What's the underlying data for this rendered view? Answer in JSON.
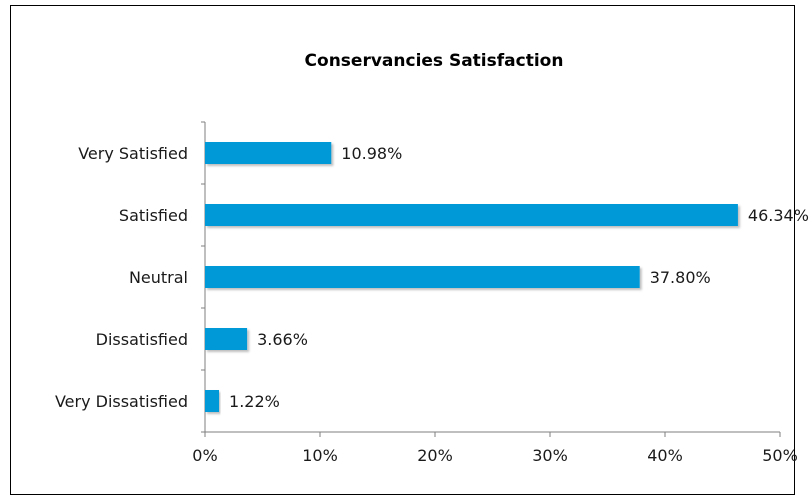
{
  "chart_data": {
    "type": "bar",
    "orientation": "horizontal",
    "title": "Conservancies Satisfaction",
    "xlabel": "",
    "ylabel": "",
    "categories": [
      "Very Satisfied",
      "Satisfied",
      "Neutral",
      "Dissatisfied",
      "Very Dissatisfied"
    ],
    "values": [
      10.98,
      46.34,
      37.8,
      3.66,
      1.22
    ],
    "value_labels": [
      "10.98%",
      "46.34%",
      "37.80%",
      "3.66%",
      "1.22%"
    ],
    "xlim": [
      0,
      50
    ],
    "x_ticks": [
      0,
      10,
      20,
      30,
      40,
      50
    ],
    "x_tick_labels": [
      "0%",
      "10%",
      "20%",
      "30%",
      "40%",
      "50%"
    ],
    "bar_color": "#0099d8",
    "grid": false,
    "legend": "none"
  }
}
